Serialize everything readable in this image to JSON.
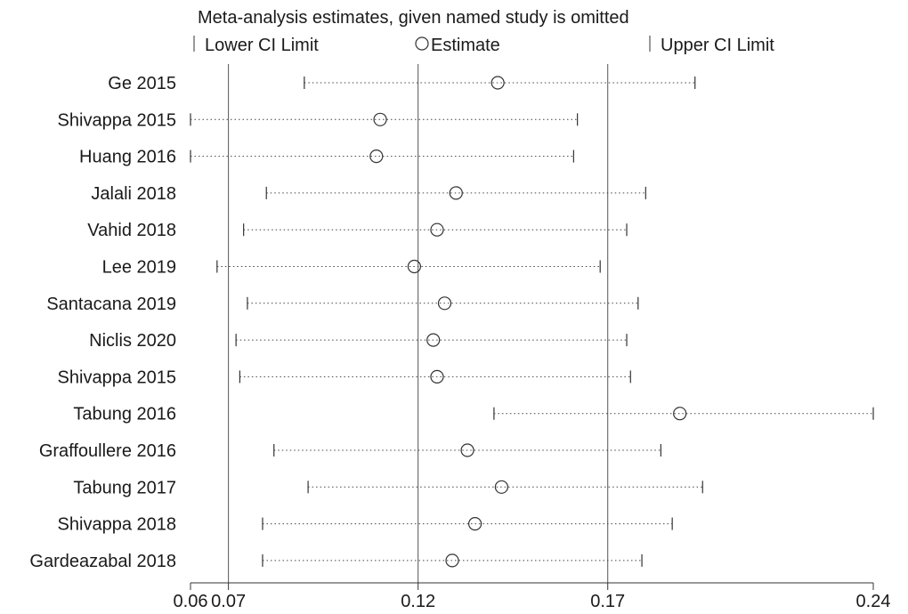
{
  "chart_data": {
    "type": "forest",
    "title": "Meta-analysis estimates, given named study is omitted",
    "legend": {
      "lower": "Lower CI Limit",
      "estimate": "Estimate",
      "upper": "Upper CI Limit"
    },
    "xlim": [
      0.06,
      0.24
    ],
    "xticks": [
      0.06,
      0.07,
      0.12,
      0.17,
      0.24
    ],
    "xtick_labels": [
      "0.06",
      "0.07",
      "0.12",
      "0.17",
      "0.24"
    ],
    "reference_lines": [
      0.07,
      0.12,
      0.17
    ],
    "studies": [
      {
        "name": "Ge 2015",
        "lower": 0.09,
        "estimate": 0.141,
        "upper": 0.193
      },
      {
        "name": "Shivappa 2015",
        "lower": 0.06,
        "estimate": 0.11,
        "upper": 0.162
      },
      {
        "name": "Huang 2016",
        "lower": 0.06,
        "estimate": 0.109,
        "upper": 0.161
      },
      {
        "name": "Jalali 2018",
        "lower": 0.08,
        "estimate": 0.13,
        "upper": 0.18
      },
      {
        "name": "Vahid 2018",
        "lower": 0.074,
        "estimate": 0.125,
        "upper": 0.175
      },
      {
        "name": "Lee 2019",
        "lower": 0.067,
        "estimate": 0.119,
        "upper": 0.168
      },
      {
        "name": "Santacana 2019",
        "lower": 0.075,
        "estimate": 0.127,
        "upper": 0.178
      },
      {
        "name": "Niclis 2020",
        "lower": 0.072,
        "estimate": 0.124,
        "upper": 0.175
      },
      {
        "name": "Shivappa 2015",
        "lower": 0.073,
        "estimate": 0.125,
        "upper": 0.176
      },
      {
        "name": "Tabung 2016",
        "lower": 0.14,
        "estimate": 0.189,
        "upper": 0.24
      },
      {
        "name": "Graffoullere 2016",
        "lower": 0.082,
        "estimate": 0.133,
        "upper": 0.184
      },
      {
        "name": "Tabung 2017",
        "lower": 0.091,
        "estimate": 0.142,
        "upper": 0.195
      },
      {
        "name": "Shivappa 2018",
        "lower": 0.079,
        "estimate": 0.135,
        "upper": 0.187
      },
      {
        "name": "Gardeazabal 2018",
        "lower": 0.079,
        "estimate": 0.129,
        "upper": 0.179
      }
    ]
  }
}
